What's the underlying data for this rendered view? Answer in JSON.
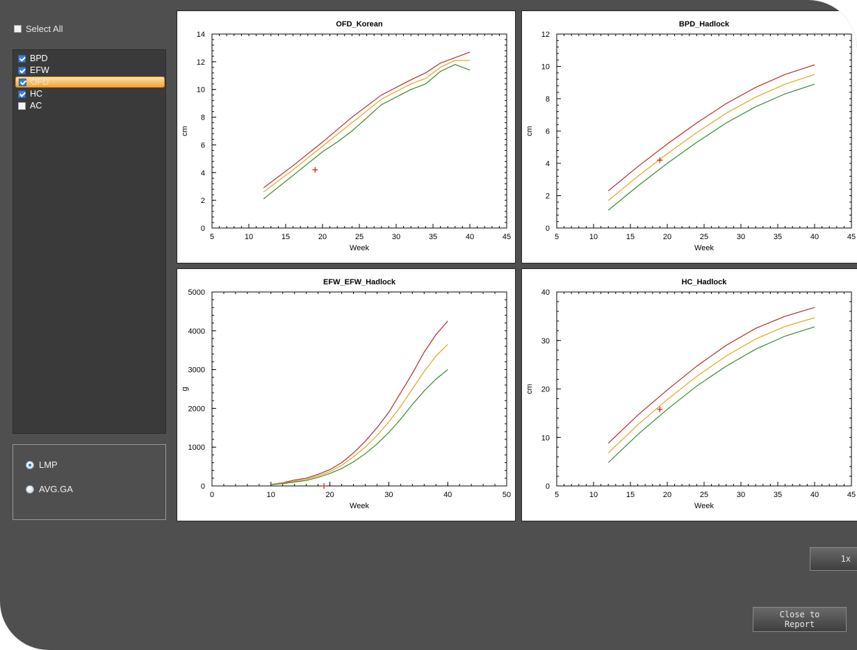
{
  "sidebar": {
    "select_all": {
      "label": "Select All",
      "checked": false
    },
    "items": [
      {
        "label": "BPD",
        "checked": true,
        "selected": false
      },
      {
        "label": "EFW",
        "checked": true,
        "selected": false
      },
      {
        "label": "OFD",
        "checked": true,
        "selected": true
      },
      {
        "label": "HC",
        "checked": true,
        "selected": false
      },
      {
        "label": "AC",
        "checked": false,
        "selected": false
      }
    ],
    "ga_options": [
      {
        "label": "LMP",
        "selected": true
      },
      {
        "label": "AVG.GA",
        "selected": false
      }
    ]
  },
  "buttons": {
    "layout_label": "1x",
    "close_label": "Close to\nReport"
  },
  "colors": {
    "upper": "#b22a2a",
    "mid": "#e3a516",
    "lower": "#2e8a34",
    "marker": "#cc2222"
  },
  "chart_data": [
    {
      "type": "line",
      "title": "OFD_Korean",
      "xlabel": "Week",
      "ylabel": "cm",
      "xlim": [
        5,
        45
      ],
      "ylim": [
        0,
        14
      ],
      "xticks": [
        5,
        10,
        15,
        20,
        25,
        30,
        35,
        40,
        45
      ],
      "yticks": [
        0,
        2,
        4,
        6,
        8,
        10,
        12,
        14
      ],
      "series": [
        {
          "x": [
            12,
            16,
            20,
            24,
            28,
            32,
            34,
            36,
            38,
            40
          ],
          "y": [
            2.9,
            4.5,
            6.2,
            8.0,
            9.6,
            10.7,
            11.2,
            11.9,
            12.3,
            12.7
          ]
        },
        {
          "x": [
            12,
            16,
            20,
            24,
            28,
            32,
            34,
            36,
            38,
            40
          ],
          "y": [
            2.6,
            4.2,
            5.9,
            7.6,
            9.3,
            10.4,
            10.8,
            11.6,
            12.1,
            12.1
          ]
        },
        {
          "x": [
            12,
            16,
            20,
            22,
            24,
            28,
            32,
            34,
            36,
            38,
            40
          ],
          "y": [
            2.1,
            3.8,
            5.5,
            6.2,
            7.0,
            8.9,
            10.0,
            10.4,
            11.3,
            11.8,
            11.4
          ]
        }
      ],
      "marker": {
        "x": 19,
        "y": 4.2
      }
    },
    {
      "type": "line",
      "title": "BPD_Hadlock",
      "xlabel": "Week",
      "ylabel": "cm",
      "xlim": [
        5,
        45
      ],
      "ylim": [
        0,
        12
      ],
      "xticks": [
        5,
        10,
        15,
        20,
        25,
        30,
        35,
        40,
        45
      ],
      "yticks": [
        0,
        2,
        4,
        6,
        8,
        10,
        12
      ],
      "series": [
        {
          "x": [
            12,
            16,
            20,
            24,
            28,
            32,
            36,
            40
          ],
          "y": [
            2.3,
            3.8,
            5.2,
            6.5,
            7.7,
            8.7,
            9.5,
            10.1
          ]
        },
        {
          "x": [
            12,
            16,
            20,
            24,
            28,
            32,
            36,
            40
          ],
          "y": [
            1.7,
            3.2,
            4.6,
            5.9,
            7.1,
            8.1,
            8.9,
            9.5
          ]
        },
        {
          "x": [
            12,
            16,
            20,
            24,
            28,
            32,
            36,
            40
          ],
          "y": [
            1.1,
            2.6,
            4.0,
            5.3,
            6.5,
            7.5,
            8.3,
            8.9
          ]
        }
      ],
      "marker": {
        "x": 19,
        "y": 4.2
      }
    },
    {
      "type": "line",
      "title": "EFW_EFW_Hadlock",
      "xlabel": "Week",
      "ylabel": "g",
      "xlim": [
        0,
        50
      ],
      "ylim": [
        0,
        5000
      ],
      "xticks": [
        0,
        10,
        20,
        30,
        40,
        50
      ],
      "yticks": [
        0,
        1000,
        2000,
        3000,
        4000,
        5000
      ],
      "series": [
        {
          "x": [
            10,
            12,
            14,
            16,
            18,
            20,
            22,
            24,
            26,
            28,
            30,
            32,
            34,
            36,
            38,
            40
          ],
          "y": [
            40,
            80,
            150,
            200,
            300,
            420,
            600,
            850,
            1150,
            1500,
            1900,
            2400,
            2900,
            3450,
            3900,
            4250
          ]
        },
        {
          "x": [
            10,
            12,
            14,
            16,
            18,
            20,
            22,
            24,
            26,
            28,
            30,
            32,
            34,
            36,
            38,
            40
          ],
          "y": [
            35,
            70,
            120,
            170,
            260,
            370,
            530,
            750,
            1000,
            1300,
            1650,
            2050,
            2500,
            2950,
            3350,
            3650
          ]
        },
        {
          "x": [
            10,
            12,
            14,
            16,
            18,
            20,
            22,
            24,
            26,
            28,
            30,
            32,
            34,
            36,
            38,
            40
          ],
          "y": [
            30,
            60,
            100,
            140,
            220,
            320,
            450,
            620,
            830,
            1080,
            1380,
            1720,
            2100,
            2450,
            2750,
            3000
          ]
        }
      ],
      "marker": {
        "x": 19,
        "y": 0
      }
    },
    {
      "type": "line",
      "title": "HC_Hadlock",
      "xlabel": "Week",
      "ylabel": "cm",
      "xlim": [
        5,
        45
      ],
      "ylim": [
        0,
        40
      ],
      "xticks": [
        5,
        10,
        15,
        20,
        25,
        30,
        35,
        40,
        45
      ],
      "yticks": [
        0,
        10,
        20,
        30,
        40
      ],
      "series": [
        {
          "x": [
            12,
            16,
            20,
            24,
            28,
            32,
            36,
            40
          ],
          "y": [
            8.8,
            14.6,
            19.8,
            24.7,
            29.0,
            32.5,
            35.0,
            36.8
          ]
        },
        {
          "x": [
            12,
            16,
            20,
            24,
            28,
            32,
            36,
            40
          ],
          "y": [
            6.8,
            12.6,
            17.8,
            22.6,
            26.8,
            30.3,
            32.9,
            34.7
          ]
        },
        {
          "x": [
            12,
            16,
            20,
            24,
            28,
            32,
            36,
            40
          ],
          "y": [
            4.8,
            10.6,
            15.8,
            20.6,
            24.7,
            28.2,
            30.9,
            32.8
          ]
        }
      ],
      "marker": {
        "x": 19,
        "y": 15.8
      }
    }
  ]
}
